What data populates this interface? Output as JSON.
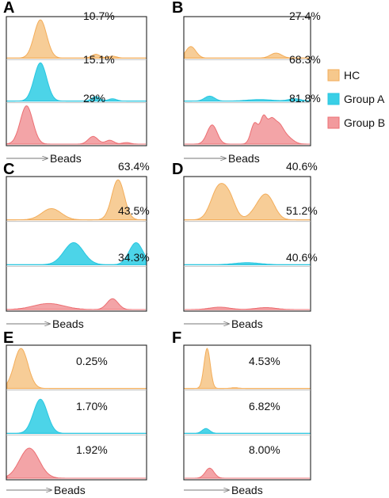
{
  "colors": {
    "HC": {
      "stroke": "#f3ad5a",
      "fill": "#f6c88c"
    },
    "Group A": {
      "stroke": "#29c6e0",
      "fill": "#39cfe6"
    },
    "Group B": {
      "stroke": "#ec6f73",
      "fill": "#f29a9d"
    }
  },
  "legend": [
    "HC",
    "Group A",
    "Group B"
  ],
  "chart_data": [
    {
      "type": "area",
      "panel": "A",
      "xlabel": "Beads",
      "series": [
        {
          "name": "HC",
          "label": "10.7%",
          "peaks": [
            [
              0.24,
              0.045,
              1.0
            ],
            [
              0.64,
              0.03,
              0.1
            ],
            [
              0.76,
              0.03,
              0.05
            ]
          ]
        },
        {
          "name": "Group A",
          "label": "15.1%",
          "peaks": [
            [
              0.24,
              0.045,
              1.0
            ],
            [
              0.64,
              0.03,
              0.12
            ],
            [
              0.76,
              0.03,
              0.06
            ]
          ]
        },
        {
          "name": "Group B",
          "label": "29%",
          "peaks": [
            [
              0.14,
              0.045,
              1.0
            ],
            [
              0.62,
              0.035,
              0.2
            ],
            [
              0.74,
              0.03,
              0.1
            ],
            [
              0.86,
              0.03,
              0.04
            ]
          ]
        }
      ]
    },
    {
      "type": "area",
      "panel": "B",
      "xlabel": "Beads",
      "series": [
        {
          "name": "HC",
          "label": "27.4%",
          "peaks": [
            [
              0.05,
              0.04,
              0.3
            ],
            [
              0.73,
              0.045,
              0.13
            ]
          ]
        },
        {
          "name": "Group A",
          "label": "68.3%",
          "peaks": [
            [
              0.2,
              0.04,
              0.13
            ],
            [
              0.6,
              0.1,
              0.04
            ],
            [
              0.88,
              0.05,
              0.06
            ]
          ]
        },
        {
          "name": "Group B",
          "label": "81.8%",
          "peaks": [
            [
              0.22,
              0.04,
              0.5
            ],
            [
              0.56,
              0.03,
              0.55
            ],
            [
              0.63,
              0.025,
              0.65
            ],
            [
              0.69,
              0.03,
              0.55
            ],
            [
              0.75,
              0.035,
              0.4
            ],
            [
              0.81,
              0.05,
              0.2
            ]
          ]
        }
      ]
    },
    {
      "type": "area",
      "panel": "C",
      "xlabel": "Beads",
      "series": [
        {
          "name": "HC",
          "label": "63.4%",
          "peaks": [
            [
              0.32,
              0.07,
              0.28
            ],
            [
              0.8,
              0.045,
              1.0
            ]
          ]
        },
        {
          "name": "Group A",
          "label": "43.5%",
          "peaks": [
            [
              0.48,
              0.07,
              0.55
            ],
            [
              0.93,
              0.05,
              0.55
            ]
          ]
        },
        {
          "name": "Group B",
          "label": "34.3%",
          "peaks": [
            [
              0.3,
              0.11,
              0.15
            ],
            [
              0.76,
              0.04,
              0.27
            ]
          ]
        }
      ]
    },
    {
      "type": "area",
      "panel": "D",
      "xlabel": "Beads",
      "series": [
        {
          "name": "HC",
          "label": "40.6%",
          "peaks": [
            [
              0.27,
              0.06,
              0.78
            ],
            [
              0.36,
              0.05,
              0.45
            ],
            [
              0.66,
              0.06,
              0.55
            ],
            [
              0.58,
              0.06,
              0.2
            ]
          ]
        },
        {
          "name": "Group A",
          "label": "51.2%",
          "peaks": [
            [
              0.5,
              0.1,
              0.05
            ]
          ]
        },
        {
          "name": "Group B",
          "label": "40.6%",
          "peaks": [
            [
              0.28,
              0.08,
              0.06
            ],
            [
              0.65,
              0.08,
              0.05
            ]
          ]
        }
      ]
    },
    {
      "type": "area",
      "panel": "E",
      "xlabel": "Beads",
      "series": [
        {
          "name": "HC",
          "label": "0.25%",
          "peaks": [
            [
              0.1,
              0.05,
              1.0
            ]
          ]
        },
        {
          "name": "Group A",
          "label": "1.70%",
          "peaks": [
            [
              0.24,
              0.05,
              0.85
            ]
          ]
        },
        {
          "name": "Group B",
          "label": "1.92%",
          "peaks": [
            [
              0.16,
              0.07,
              0.75
            ]
          ]
        }
      ]
    },
    {
      "type": "area",
      "panel": "F",
      "xlabel": "Beads",
      "series": [
        {
          "name": "HC",
          "label": "4.53%",
          "peaks": [
            [
              0.18,
              0.025,
              1.0
            ],
            [
              0.4,
              0.03,
              0.02
            ]
          ]
        },
        {
          "name": "Group A",
          "label": "6.82%",
          "peaks": [
            [
              0.17,
              0.03,
              0.12
            ]
          ]
        },
        {
          "name": "Group B",
          "label": "8.00%",
          "peaks": [
            [
              0.2,
              0.035,
              0.25
            ]
          ]
        }
      ]
    }
  ]
}
